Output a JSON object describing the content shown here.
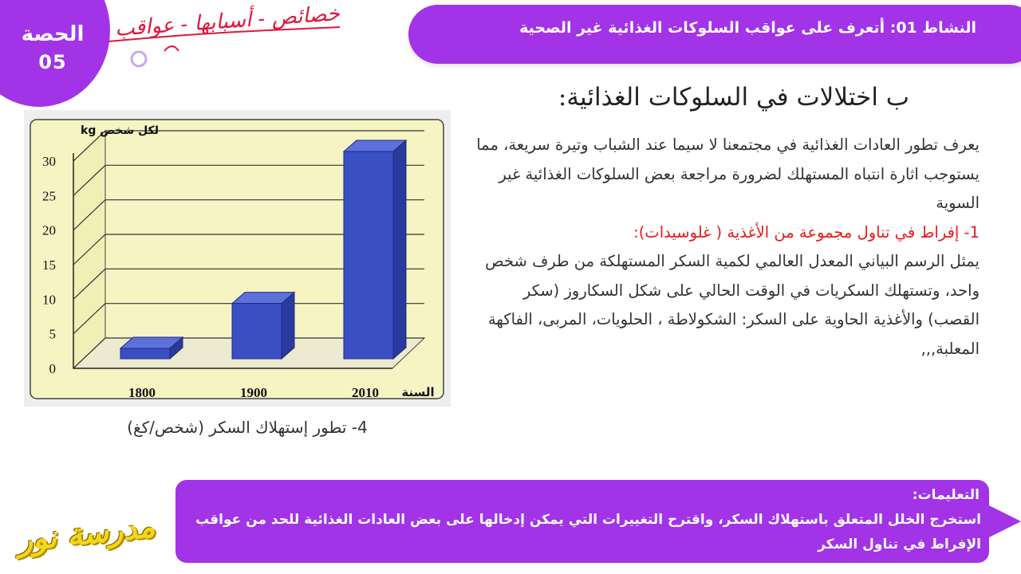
{
  "session": {
    "label": "الحصة",
    "number": "05"
  },
  "annotation": {
    "handwritten": "خصائص - أسبابها - عواقب"
  },
  "activity": {
    "title": "النشاط 01: أتعرف على عواقب السلوكات الغذائية غير الصحية"
  },
  "section": {
    "heading": "ب   اختلالات في السلوكات الغذائية:"
  },
  "content": {
    "paragraph1": "يعرف تطور العادات الغذائية في مجتمعنا لا سيما عند الشباب وتيرة سريعة، مما يستوجب اثارة انتباه المستهلك لضرورة مراجعة  بعض السلوكات الغذائية غير السوية",
    "subheading": "1- إفراط في تناول مجموعة من الأغذية ( غلوسيدات):",
    "paragraph2": "يمثل الرسم البياني المعدل العالمي لكمية السكر المستهلكة من طرف شخص واحد، وتستهلك السكريات في الوقت الحالي على شكل السكاروز (سكر القصب) والأغذية الحاوية على السكر: الشكولاطة ، الحلويات، المربى، الفاكهة المعلبة,,,"
  },
  "chart_data": {
    "type": "bar",
    "categories": [
      "1800",
      "1900",
      "2010"
    ],
    "values": [
      1.5,
      8,
      30
    ],
    "ylabel": "kg لكل شخص",
    "xlabel": "السنة",
    "yticks": [
      0,
      5,
      10,
      15,
      20,
      25,
      30
    ],
    "ylim": [
      0,
      35
    ],
    "caption": "4- تطور إستهلاك السكر (شخص/كغ)",
    "bar_color": "#3b4fc4",
    "grid": true
  },
  "instructions": {
    "heading": "التعليمات:",
    "text": "استخرج الخلل المتعلق باستهلاك السكر، واقترح التغييرات التي يمكن إدخالها على بعض العادات الغذائية للحد من عواقب الإفراط في تناول السكر"
  },
  "logo": {
    "text": "مدرسة نور"
  }
}
